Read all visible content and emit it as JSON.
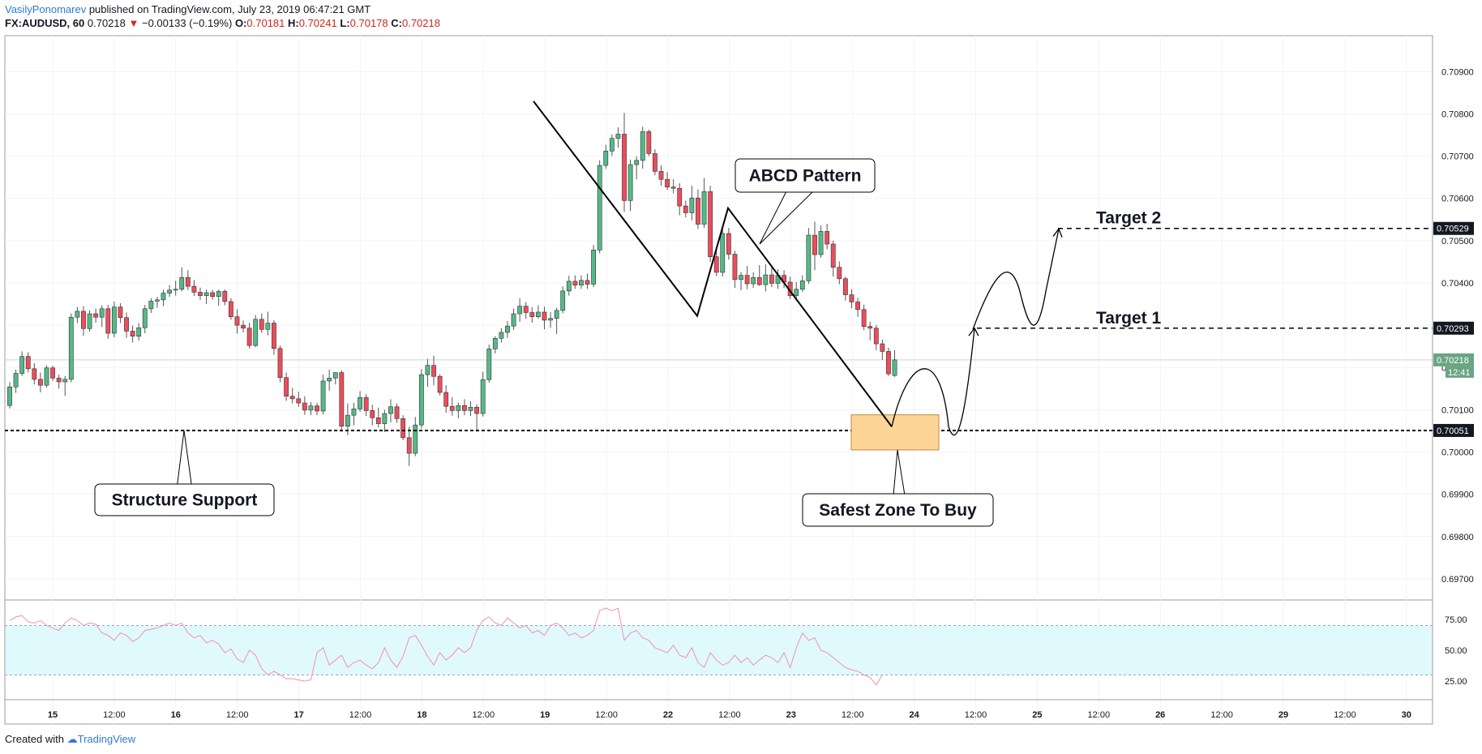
{
  "header": {
    "author": "VasilyPonomarev",
    "published": "published on TradingView.com, July 23, 2019 06:47:21 GMT",
    "symbol": "FX:AUDUSD, 60",
    "last": "0.70218",
    "change": "−0.00133 (−0.19%)",
    "o_label": "O:",
    "o": "0.70181",
    "h_label": "H:",
    "h": "0.70241",
    "l_label": "L:",
    "l": "0.70178",
    "c_label": "C:",
    "c": "0.70218"
  },
  "footer": {
    "created": "Created with",
    "brand": "TradingView"
  },
  "chart_data": {
    "type": "candlestick",
    "symbol": "AUDUSD",
    "interval": "60",
    "ylim": [
      0.6965,
      0.70985
    ],
    "price_ticks": [
      "0.70900",
      "0.70800",
      "0.70700",
      "0.70600",
      "0.70500",
      "0.70400",
      "0.70300",
      "0.70200",
      "0.70100",
      "0.70000",
      "0.69900",
      "0.69800",
      "0.69700"
    ],
    "time_ticks": [
      "15",
      "12:00",
      "16",
      "12:00",
      "17",
      "12:00",
      "18",
      "12:00",
      "19",
      "12:00",
      "22",
      "12:00",
      "23",
      "12:00",
      "24",
      "12:00",
      "25",
      "12:00",
      "26",
      "12:00",
      "29",
      "12:00",
      "30"
    ],
    "bold_time_ticks": [
      "15",
      "16",
      "17",
      "18",
      "19",
      "22",
      "23",
      "24",
      "25",
      "26",
      "29",
      "30"
    ],
    "price_labels": [
      {
        "value": "0.70529",
        "price": 0.70529,
        "bg": "#131722"
      },
      {
        "value": "0.70293",
        "price": 0.70293,
        "bg": "#131722"
      },
      {
        "value": "0.70218",
        "price": 0.70218,
        "bg": "#6aa583"
      },
      {
        "value": "0.70051",
        "price": 0.70051,
        "bg": "#131722"
      }
    ],
    "countdown": "12:41",
    "candles": [
      [
        0.7011,
        0.70165,
        0.70103,
        0.70154
      ],
      [
        0.70154,
        0.70195,
        0.7014,
        0.70186
      ],
      [
        0.70186,
        0.70238,
        0.7018,
        0.70226
      ],
      [
        0.70226,
        0.70236,
        0.70188,
        0.70197
      ],
      [
        0.70197,
        0.7021,
        0.7016,
        0.70172
      ],
      [
        0.70172,
        0.70188,
        0.70141,
        0.70158
      ],
      [
        0.70158,
        0.70205,
        0.70152,
        0.70199
      ],
      [
        0.70199,
        0.70204,
        0.70168,
        0.70175
      ],
      [
        0.70175,
        0.70183,
        0.7015,
        0.70166
      ],
      [
        0.70166,
        0.7018,
        0.70133,
        0.70172
      ],
      [
        0.70172,
        0.70328,
        0.70165,
        0.70319
      ],
      [
        0.70319,
        0.70343,
        0.70305,
        0.70333
      ],
      [
        0.70333,
        0.70345,
        0.70275,
        0.70292
      ],
      [
        0.70292,
        0.70335,
        0.70285,
        0.70327
      ],
      [
        0.70327,
        0.70339,
        0.70306,
        0.70319
      ],
      [
        0.70319,
        0.70347,
        0.70296,
        0.70339
      ],
      [
        0.70339,
        0.70348,
        0.70268,
        0.70281
      ],
      [
        0.70281,
        0.70356,
        0.70271,
        0.70343
      ],
      [
        0.70343,
        0.70352,
        0.70305,
        0.70318
      ],
      [
        0.70318,
        0.7033,
        0.7027,
        0.70286
      ],
      [
        0.70286,
        0.70299,
        0.70259,
        0.70274
      ],
      [
        0.70274,
        0.70305,
        0.70264,
        0.70294
      ],
      [
        0.70294,
        0.70348,
        0.70281,
        0.70339
      ],
      [
        0.70339,
        0.70364,
        0.70329,
        0.70357
      ],
      [
        0.70357,
        0.70367,
        0.70341,
        0.7036
      ],
      [
        0.7036,
        0.70384,
        0.70345,
        0.70376
      ],
      [
        0.70376,
        0.70395,
        0.70367,
        0.70383
      ],
      [
        0.70383,
        0.70405,
        0.7037,
        0.70385
      ],
      [
        0.70385,
        0.70437,
        0.7038,
        0.70413
      ],
      [
        0.70413,
        0.7043,
        0.70383,
        0.70392
      ],
      [
        0.70392,
        0.70407,
        0.70369,
        0.70378
      ],
      [
        0.70378,
        0.70389,
        0.7036,
        0.7037
      ],
      [
        0.7037,
        0.70384,
        0.7035,
        0.70377
      ],
      [
        0.70377,
        0.70384,
        0.70361,
        0.70368
      ],
      [
        0.70368,
        0.70384,
        0.70346,
        0.7038
      ],
      [
        0.7038,
        0.70385,
        0.70347,
        0.70356
      ],
      [
        0.70356,
        0.70364,
        0.70313,
        0.7032
      ],
      [
        0.7032,
        0.70338,
        0.7028,
        0.703
      ],
      [
        0.703,
        0.70311,
        0.70283,
        0.70293
      ],
      [
        0.70293,
        0.70306,
        0.70245,
        0.70252
      ],
      [
        0.70252,
        0.70324,
        0.70248,
        0.70314
      ],
      [
        0.70314,
        0.70328,
        0.70282,
        0.7029
      ],
      [
        0.7029,
        0.70332,
        0.70276,
        0.70305
      ],
      [
        0.70305,
        0.70312,
        0.7023,
        0.70245
      ],
      [
        0.70245,
        0.70252,
        0.70165,
        0.70176
      ],
      [
        0.70176,
        0.70188,
        0.70121,
        0.70132
      ],
      [
        0.70132,
        0.70152,
        0.70115,
        0.70126
      ],
      [
        0.70126,
        0.70143,
        0.70107,
        0.70116
      ],
      [
        0.70116,
        0.70132,
        0.70088,
        0.70099
      ],
      [
        0.70099,
        0.70118,
        0.70087,
        0.70109
      ],
      [
        0.70109,
        0.70116,
        0.70087,
        0.70097
      ],
      [
        0.70097,
        0.70183,
        0.70089,
        0.70168
      ],
      [
        0.70168,
        0.70195,
        0.70145,
        0.70175
      ],
      [
        0.70175,
        0.70188,
        0.7016,
        0.70188
      ],
      [
        0.70188,
        0.70193,
        0.70048,
        0.70061
      ],
      [
        0.70061,
        0.70115,
        0.7004,
        0.70087
      ],
      [
        0.70087,
        0.70116,
        0.70063,
        0.70102
      ],
      [
        0.70102,
        0.70144,
        0.70095,
        0.70129
      ],
      [
        0.70129,
        0.70137,
        0.70085,
        0.70098
      ],
      [
        0.70098,
        0.70112,
        0.70063,
        0.70081
      ],
      [
        0.70081,
        0.70105,
        0.70058,
        0.70067
      ],
      [
        0.70067,
        0.701,
        0.70047,
        0.70091
      ],
      [
        0.70091,
        0.70125,
        0.7007,
        0.70107
      ],
      [
        0.70107,
        0.70115,
        0.70069,
        0.70079
      ],
      [
        0.70079,
        0.70087,
        0.70028,
        0.70034
      ],
      [
        0.70034,
        0.7006,
        0.69967,
        0.69997
      ],
      [
        0.69997,
        0.70083,
        0.6999,
        0.70064
      ],
      [
        0.70064,
        0.70196,
        0.70055,
        0.70183
      ],
      [
        0.70183,
        0.7022,
        0.70154,
        0.70205
      ],
      [
        0.70205,
        0.70228,
        0.70158,
        0.70179
      ],
      [
        0.70179,
        0.70184,
        0.70134,
        0.70141
      ],
      [
        0.70141,
        0.70158,
        0.70093,
        0.70108
      ],
      [
        0.70108,
        0.7013,
        0.70086,
        0.70098
      ],
      [
        0.70098,
        0.70117,
        0.7008,
        0.7011
      ],
      [
        0.7011,
        0.70125,
        0.70087,
        0.70098
      ],
      [
        0.70098,
        0.7012,
        0.70085,
        0.70106
      ],
      [
        0.70106,
        0.70113,
        0.70048,
        0.70091
      ],
      [
        0.70091,
        0.7019,
        0.70084,
        0.70171
      ],
      [
        0.70171,
        0.70254,
        0.70164,
        0.70244
      ],
      [
        0.70244,
        0.70274,
        0.70233,
        0.70269
      ],
      [
        0.70269,
        0.70293,
        0.70259,
        0.70283
      ],
      [
        0.70283,
        0.7031,
        0.7027,
        0.70298
      ],
      [
        0.70298,
        0.70339,
        0.70289,
        0.70327
      ],
      [
        0.70327,
        0.70364,
        0.70308,
        0.70345
      ],
      [
        0.70345,
        0.70355,
        0.70315,
        0.7033
      ],
      [
        0.7033,
        0.70343,
        0.70306,
        0.7032
      ],
      [
        0.7032,
        0.70347,
        0.70316,
        0.70331
      ],
      [
        0.70331,
        0.70344,
        0.7029,
        0.70312
      ],
      [
        0.70312,
        0.70331,
        0.70294,
        0.70316
      ],
      [
        0.70316,
        0.70341,
        0.70279,
        0.70335
      ],
      [
        0.70335,
        0.70392,
        0.70328,
        0.70381
      ],
      [
        0.70381,
        0.70417,
        0.7037,
        0.70404
      ],
      [
        0.70404,
        0.70418,
        0.70386,
        0.70395
      ],
      [
        0.70395,
        0.70418,
        0.70386,
        0.70406
      ],
      [
        0.70406,
        0.70422,
        0.70386,
        0.70397
      ],
      [
        0.70397,
        0.7049,
        0.7039,
        0.70478
      ],
      [
        0.70478,
        0.7069,
        0.7047,
        0.70678
      ],
      [
        0.70678,
        0.70727,
        0.7067,
        0.70712
      ],
      [
        0.70712,
        0.70751,
        0.707,
        0.70742
      ],
      [
        0.70742,
        0.70768,
        0.7072,
        0.70752
      ],
      [
        0.70752,
        0.70802,
        0.70568,
        0.70595
      ],
      [
        0.70595,
        0.70692,
        0.7057,
        0.7068
      ],
      [
        0.7068,
        0.707,
        0.70645,
        0.7069
      ],
      [
        0.7069,
        0.7077,
        0.7067,
        0.70758
      ],
      [
        0.70758,
        0.70763,
        0.707,
        0.70706
      ],
      [
        0.70706,
        0.70716,
        0.70655,
        0.70664
      ],
      [
        0.70664,
        0.70678,
        0.7063,
        0.70645
      ],
      [
        0.70645,
        0.70662,
        0.7062,
        0.70627
      ],
      [
        0.70627,
        0.70645,
        0.70612,
        0.70624
      ],
      [
        0.70624,
        0.70636,
        0.7056,
        0.70582
      ],
      [
        0.70582,
        0.70595,
        0.70555,
        0.70566
      ],
      [
        0.70566,
        0.7063,
        0.70548,
        0.70601
      ],
      [
        0.70601,
        0.70621,
        0.70528,
        0.70539
      ],
      [
        0.70539,
        0.70648,
        0.7053,
        0.70616
      ],
      [
        0.70616,
        0.7063,
        0.7045,
        0.70462
      ],
      [
        0.70462,
        0.70478,
        0.70416,
        0.70425
      ],
      [
        0.70425,
        0.7053,
        0.70415,
        0.70517
      ],
      [
        0.70517,
        0.7053,
        0.70455,
        0.70468
      ],
      [
        0.70468,
        0.70476,
        0.70388,
        0.70408
      ],
      [
        0.70408,
        0.70426,
        0.70383,
        0.70418
      ],
      [
        0.70418,
        0.7044,
        0.70385,
        0.70398
      ],
      [
        0.70398,
        0.70425,
        0.70388,
        0.70413
      ],
      [
        0.70413,
        0.70442,
        0.70393,
        0.70396
      ],
      [
        0.70396,
        0.70444,
        0.7038,
        0.70419
      ],
      [
        0.70419,
        0.70436,
        0.7039,
        0.70399
      ],
      [
        0.70399,
        0.70432,
        0.70386,
        0.70418
      ],
      [
        0.70418,
        0.7043,
        0.70388,
        0.70402
      ],
      [
        0.70402,
        0.70415,
        0.70362,
        0.7037
      ],
      [
        0.7037,
        0.70402,
        0.70358,
        0.70385
      ],
      [
        0.70385,
        0.70418,
        0.70379,
        0.70405
      ],
      [
        0.70405,
        0.7053,
        0.70398,
        0.70513
      ],
      [
        0.70513,
        0.70545,
        0.7043,
        0.70467
      ],
      [
        0.70467,
        0.70536,
        0.7046,
        0.70522
      ],
      [
        0.70522,
        0.7054,
        0.7048,
        0.70492
      ],
      [
        0.70492,
        0.705,
        0.70415,
        0.70437
      ],
      [
        0.70437,
        0.70451,
        0.70397,
        0.7041
      ],
      [
        0.7041,
        0.70415,
        0.70358,
        0.70372
      ],
      [
        0.70372,
        0.70385,
        0.7034,
        0.70355
      ],
      [
        0.70355,
        0.70365,
        0.7032,
        0.70337
      ],
      [
        0.70337,
        0.70349,
        0.70288,
        0.70297
      ],
      [
        0.70297,
        0.70308,
        0.70264,
        0.70293
      ],
      [
        0.70293,
        0.70301,
        0.70241,
        0.70256
      ],
      [
        0.70256,
        0.70266,
        0.70218,
        0.70238
      ],
      [
        0.70238,
        0.70247,
        0.7018,
        0.70185
      ],
      [
        0.70181,
        0.70241,
        0.70178,
        0.70218
      ]
    ],
    "rsi": {
      "levels": [
        30,
        70
      ],
      "ticks": [
        "75.00",
        "50.00",
        "25.00"
      ],
      "range": [
        10,
        90
      ],
      "values": [
        74,
        77,
        78,
        73,
        72,
        74,
        70,
        68,
        66,
        72,
        76,
        74,
        70,
        72,
        71,
        64,
        62,
        58,
        64,
        62,
        57,
        60,
        66,
        67,
        68,
        70,
        72,
        70,
        72,
        64,
        60,
        62,
        56,
        58,
        55,
        48,
        51,
        43,
        40,
        50,
        46,
        35,
        30,
        33,
        30,
        27,
        27,
        26,
        25,
        26,
        48,
        52,
        38,
        42,
        46,
        36,
        40,
        42,
        38,
        35,
        40,
        52,
        42,
        36,
        45,
        60,
        62,
        54,
        45,
        38,
        48,
        42,
        46,
        52,
        48,
        52,
        66,
        74,
        77,
        72,
        70,
        76,
        72,
        68,
        70,
        64,
        66,
        62,
        70,
        72,
        68,
        62,
        64,
        60,
        62,
        66,
        82,
        84,
        82,
        84,
        58,
        64,
        66,
        60,
        58,
        52,
        50,
        48,
        54,
        46,
        44,
        52,
        40,
        36,
        48,
        42,
        38,
        40,
        46,
        40,
        44,
        38,
        42,
        46,
        44,
        40,
        48,
        36,
        52,
        64,
        58,
        60,
        50,
        48,
        44,
        40,
        36,
        34,
        33,
        30,
        28,
        22,
        30
      ]
    },
    "annotations": {
      "abcd_label": "ABCD Pattern",
      "structure_label": "Structure Support",
      "buy_zone_label": "Safest Zone To Buy",
      "target1_label": "Target 1",
      "target2_label": "Target 2",
      "support_price": 0.70051,
      "target1_price": 0.70293,
      "target2_price": 0.70529,
      "buy_zone_top": 0.70088,
      "buy_zone_bottom": 0.70005,
      "buy_zone_color": "#fdd597"
    },
    "colors": {
      "up": "#53b987",
      "down": "#eb4d5c",
      "rsi_line": "#f48fb1",
      "rsi_band": "#e0f9fd"
    }
  }
}
